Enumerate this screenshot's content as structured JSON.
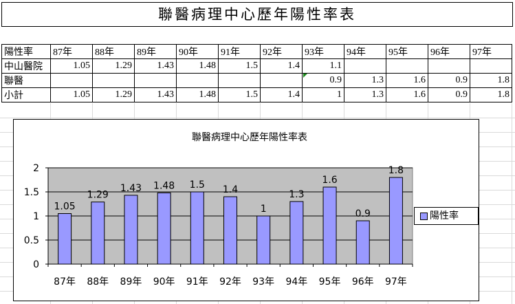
{
  "banner_title": "聯醫病理中心歷年陽性率表",
  "table": {
    "header_label": "陽性率",
    "years": [
      "87年",
      "88年",
      "89年",
      "90年",
      "91年",
      "92年",
      "93年",
      "94年",
      "95年",
      "96年",
      "97年"
    ],
    "rows": [
      {
        "label": "中山醫院",
        "values": [
          "1.05",
          "1.29",
          "1.43",
          "1.48",
          "1.5",
          "1.4",
          "1.1",
          "",
          "",
          "",
          ""
        ]
      },
      {
        "label": "聯醫",
        "values": [
          "",
          "",
          "",
          "",
          "",
          "",
          "0.9",
          "1.3",
          "1.6",
          "0.9",
          "1.8"
        ]
      },
      {
        "label": "小計",
        "values": [
          "1.05",
          "1.29",
          "1.43",
          "1.48",
          "1.5",
          "1.4",
          "1",
          "1.3",
          "1.6",
          "0.9",
          "1.8"
        ]
      }
    ]
  },
  "chart_data": {
    "type": "bar",
    "title": "聯醫病理中心歷年陽性率表",
    "categories": [
      "87年",
      "88年",
      "89年",
      "90年",
      "91年",
      "92年",
      "93年",
      "94年",
      "95年",
      "96年",
      "97年"
    ],
    "series": [
      {
        "name": "陽性率",
        "values": [
          1.05,
          1.29,
          1.43,
          1.48,
          1.5,
          1.4,
          1,
          1.3,
          1.6,
          0.9,
          1.8
        ],
        "color": "#9999ff"
      }
    ],
    "data_labels": [
      "1.05",
      "1.29",
      "1.43",
      "1.48",
      "1.5",
      "1.4",
      "1",
      "1.3",
      "1.6",
      "0.9",
      "1.8"
    ],
    "yticks": [
      "0",
      "0.5",
      "1",
      "1.5",
      "2"
    ],
    "ylim": [
      0,
      2
    ],
    "plot_background": "#c0c0c0",
    "grid": true,
    "legend_position": "right"
  }
}
